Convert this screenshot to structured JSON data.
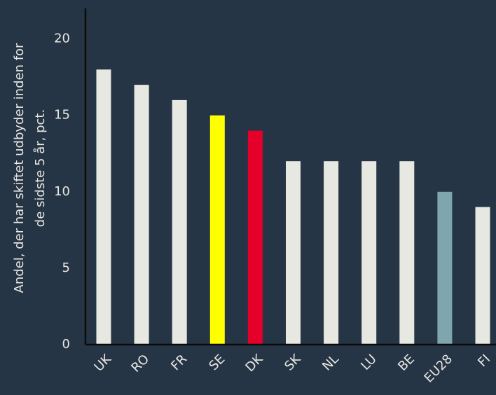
{
  "chart_data": {
    "type": "bar",
    "ylabel": [
      "Andel, der har skiftet udbyder inden for",
      "de sidste 5 år, pct."
    ],
    "categories": [
      "UK",
      "RO",
      "FR",
      "SE",
      "DK",
      "SK",
      "NL",
      "LU",
      "BE",
      "EU28",
      "FI"
    ],
    "values": [
      18,
      17,
      16,
      15,
      14,
      12,
      12,
      12,
      12,
      10,
      9
    ],
    "colors": [
      "#e8e8e3",
      "#e8e8e3",
      "#e8e8e3",
      "#ffff00",
      "#e4002b",
      "#e8e8e3",
      "#e8e8e3",
      "#e8e8e3",
      "#e8e8e3",
      "#7fa6ad",
      "#e8e8e3"
    ],
    "ylim": [
      0,
      22
    ],
    "yticks": [
      0,
      5,
      10,
      15,
      20
    ],
    "grid": false
  }
}
